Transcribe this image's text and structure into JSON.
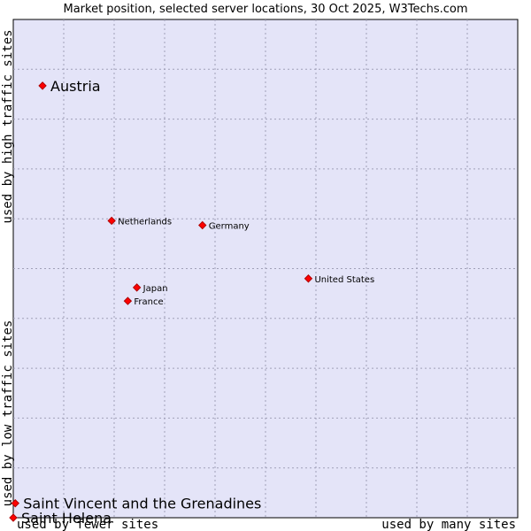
{
  "chart_data": {
    "type": "scatter",
    "title": "Market position, selected server locations, 30 Oct 2025, W3Techs.com",
    "xlabel_low": "used by fewer sites",
    "xlabel_high": "used by many sites",
    "ylabel_low": "used by low traffic sites",
    "ylabel_high": "used by high traffic sites",
    "xlim": [
      0,
      100
    ],
    "ylim": [
      0,
      100
    ],
    "grid": true,
    "points": [
      {
        "label": "Austria",
        "x": 5.8,
        "y": 86.7,
        "size": "large"
      },
      {
        "label": "Netherlands",
        "x": 19.5,
        "y": 59.6,
        "size": "small"
      },
      {
        "label": "Germany",
        "x": 37.5,
        "y": 58.7,
        "size": "small"
      },
      {
        "label": "United States",
        "x": 58.5,
        "y": 48.0,
        "size": "small"
      },
      {
        "label": "Japan",
        "x": 24.5,
        "y": 46.2,
        "size": "small"
      },
      {
        "label": "France",
        "x": 22.7,
        "y": 43.5,
        "size": "small"
      },
      {
        "label": "Saint Vincent and the Grenadines",
        "x": 0.4,
        "y": 2.9,
        "size": "large"
      },
      {
        "label": "Saint Helena",
        "x": 0.0,
        "y": 0.0,
        "size": "large"
      }
    ]
  },
  "colors": {
    "plot_background": "#e4e4f8",
    "marker": "#ff0000",
    "marker_stroke": "#b00000"
  }
}
